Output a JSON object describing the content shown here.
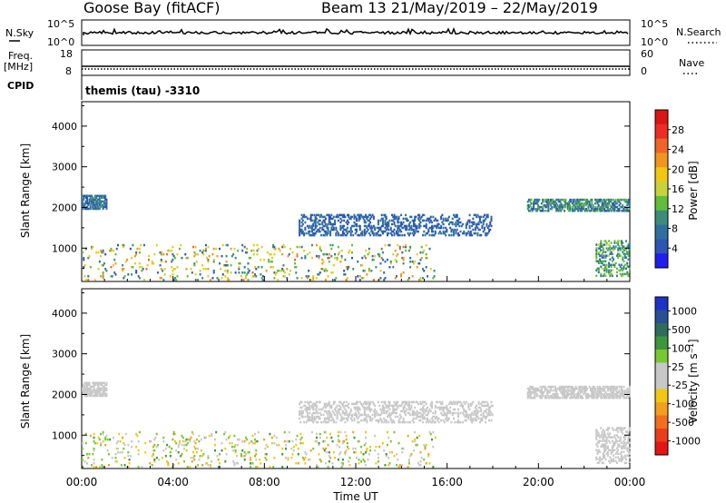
{
  "header": {
    "title": "Goose Bay (fitACF)",
    "beam_label": "Beam 13 21/May/2019 – 22/May/2019"
  },
  "small_panels": {
    "nsky_label": "N.Sky",
    "nsky_ticks": [
      "10^5",
      "10^0"
    ],
    "nsearch_label": "N.Search",
    "nsearch_ticks": [
      "10^5",
      "10^0"
    ],
    "freq_label_1": "Freq.",
    "freq_label_2": "[MHz]",
    "freq_ticks": [
      "18",
      "8"
    ],
    "nave_label": "Nave",
    "nave_ticks": [
      "60",
      "0"
    ],
    "cpid_label": "CPID",
    "cpid_text": "themis (tau) -3310"
  },
  "x_axis": {
    "label": "Time UT",
    "ticks": [
      "00:00",
      "04:00",
      "08:00",
      "12:00",
      "16:00",
      "20:00",
      "00:00"
    ]
  },
  "chart_data": [
    {
      "type": "heatmap",
      "title": "Power",
      "ylabel": "Slant Range [km]",
      "xlabel": "",
      "ylim": [
        180,
        4600
      ],
      "xlim_hours": [
        0,
        24
      ],
      "y_ticks": [
        "1000",
        "2000",
        "3000",
        "4000"
      ],
      "y_tick_values": [
        1000,
        2000,
        3000,
        4000
      ],
      "colorbar": {
        "label": "Power [dB]",
        "ticks": [
          "4",
          "8",
          "12",
          "16",
          "20",
          "24",
          "28"
        ],
        "colors": [
          "#1e1ef0",
          "#2d55b4",
          "#2f6fa0",
          "#3c8c78",
          "#5fbe3c",
          "#c8d23c",
          "#f0c814",
          "#f0961e",
          "#f06428",
          "#eb2d23",
          "#dc1414"
        ]
      },
      "scatter_regions": [
        {
          "name": "early-band",
          "x_range": [
            0.0,
            1.1
          ],
          "y_range": [
            1950,
            2300
          ],
          "value_range": [
            4,
            12
          ],
          "density": 0.7
        },
        {
          "name": "bottom-echoes",
          "x_range": [
            0.0,
            15.5
          ],
          "y_range": [
            200,
            1100
          ],
          "value_range": [
            4,
            24
          ],
          "density": 0.08
        },
        {
          "name": "arc-band",
          "x_range": [
            9.5,
            18.0
          ],
          "y_range": [
            1300,
            1850
          ],
          "value_range": [
            4,
            8
          ],
          "density": 0.35
        },
        {
          "name": "late-band",
          "x_range": [
            19.5,
            24.0
          ],
          "y_range": [
            1900,
            2200
          ],
          "value_range": [
            4,
            14
          ],
          "density": 0.6
        },
        {
          "name": "late-low",
          "x_range": [
            22.5,
            24.0
          ],
          "y_range": [
            300,
            1200
          ],
          "value_range": [
            6,
            16
          ],
          "density": 0.35
        }
      ]
    },
    {
      "type": "heatmap",
      "title": "Velocity",
      "ylabel": "Slant Range [km]",
      "xlabel": "Time UT",
      "ylim": [
        180,
        4600
      ],
      "xlim_hours": [
        0,
        24
      ],
      "y_ticks": [
        "1000",
        "2000",
        "3000",
        "4000"
      ],
      "y_tick_values": [
        1000,
        2000,
        3000,
        4000
      ],
      "colorbar": {
        "label": "Velocity [m s⁻¹]",
        "ticks": [
          "1000",
          "500",
          "100",
          "25",
          "-25",
          "-100",
          "-500",
          "-1000"
        ],
        "colors": [
          "#1e32c8",
          "#285096",
          "#2d6e5a",
          "#3c963c",
          "#78c832",
          "#c8c8c8",
          "#c8c8c8",
          "#f0c814",
          "#f0a01e",
          "#f06e1e",
          "#eb3c1e",
          "#e61414"
        ]
      },
      "scatter_regions": [
        {
          "name": "early-band",
          "x_range": [
            0.0,
            1.1
          ],
          "y_range": [
            1950,
            2300
          ],
          "value_range": [
            -25,
            25
          ],
          "density": 0.7
        },
        {
          "name": "bottom-echoes",
          "x_range": [
            0.0,
            15.5
          ],
          "y_range": [
            200,
            1100
          ],
          "value_range": [
            -500,
            500
          ],
          "density": 0.08
        },
        {
          "name": "arc-band",
          "x_range": [
            9.5,
            18.0
          ],
          "y_range": [
            1300,
            1850
          ],
          "value_range": [
            -25,
            25
          ],
          "density": 0.35
        },
        {
          "name": "late-band",
          "x_range": [
            19.5,
            24.0
          ],
          "y_range": [
            1900,
            2200
          ],
          "value_range": [
            -25,
            25
          ],
          "density": 0.6
        },
        {
          "name": "late-low",
          "x_range": [
            22.5,
            24.0
          ],
          "y_range": [
            300,
            1200
          ],
          "value_range": [
            -100,
            100
          ],
          "density": 0.35
        }
      ]
    }
  ],
  "colors": {
    "axis": "#000000",
    "line": "#000000"
  }
}
